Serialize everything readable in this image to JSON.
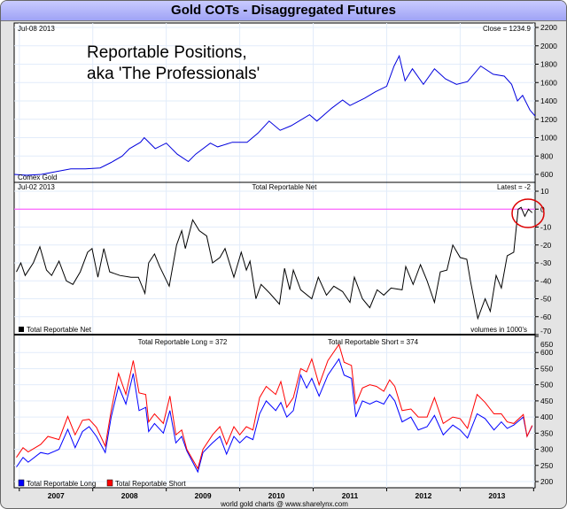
{
  "title": "Gold COTs - Disaggregated Futures",
  "footer": "world gold charts @ www.sharelynx.com",
  "annotation": {
    "line1": "Reportable Positions,",
    "line2": "aka 'The Professionals'"
  },
  "chart_data": [
    {
      "type": "line",
      "panel": "price",
      "date_label": "Jul-08 2013",
      "latest_label": "Close = 1234.9",
      "legend": "Comex Gold",
      "ylim": [
        500,
        2200
      ],
      "yticks": [
        600,
        800,
        1000,
        1200,
        1400,
        1600,
        1800,
        2000,
        2200
      ],
      "color": "#0000dd",
      "x": [
        2006.43,
        2006.6,
        2006.8,
        2007.0,
        2007.2,
        2007.4,
        2007.6,
        2007.75,
        2007.9,
        2008.0,
        2008.15,
        2008.2,
        2008.35,
        2008.5,
        2008.65,
        2008.8,
        2008.9,
        2009.1,
        2009.2,
        2009.4,
        2009.6,
        2009.75,
        2009.9,
        2010.05,
        2010.2,
        2010.45,
        2010.55,
        2010.75,
        2010.9,
        2011.0,
        2011.2,
        2011.35,
        2011.5,
        2011.6,
        2011.67,
        2011.75,
        2011.85,
        2012.0,
        2012.15,
        2012.3,
        2012.45,
        2012.6,
        2012.78,
        2012.95,
        2013.1,
        2013.2,
        2013.28,
        2013.35,
        2013.45,
        2013.52
      ],
      "values": [
        600,
        590,
        600,
        630,
        660,
        660,
        670,
        730,
        800,
        880,
        950,
        1000,
        880,
        940,
        820,
        740,
        820,
        940,
        900,
        950,
        950,
        1050,
        1180,
        1080,
        1130,
        1250,
        1180,
        1320,
        1410,
        1350,
        1430,
        1500,
        1560,
        1780,
        1890,
        1620,
        1750,
        1580,
        1750,
        1640,
        1580,
        1610,
        1780,
        1690,
        1670,
        1580,
        1400,
        1460,
        1300,
        1235
      ]
    },
    {
      "type": "line",
      "panel": "net",
      "title": "Total Reportable Net",
      "date_label": "Jul-02 2013",
      "latest_label": "Latest = -2",
      "legend": "Total Reportable Net",
      "note": "volumes in 1000's",
      "ylim": [
        -70,
        10
      ],
      "yticks": [
        10,
        0,
        -10,
        -20,
        -30,
        -40,
        -50,
        -60,
        -70
      ],
      "color": "#000000",
      "zero_line_color": "#ff44ff",
      "highlight_color": "#dd0000",
      "x": [
        2006.46,
        2006.52,
        2006.58,
        2006.69,
        2006.78,
        2006.87,
        2006.94,
        2007.04,
        2007.14,
        2007.23,
        2007.33,
        2007.43,
        2007.49,
        2007.57,
        2007.65,
        2007.73,
        2007.87,
        2008.02,
        2008.12,
        2008.21,
        2008.26,
        2008.34,
        2008.41,
        2008.54,
        2008.64,
        2008.71,
        2008.76,
        2008.86,
        2008.95,
        2009.05,
        2009.13,
        2009.23,
        2009.3,
        2009.42,
        2009.52,
        2009.59,
        2009.64,
        2009.72,
        2009.79,
        2009.91,
        2010.04,
        2010.11,
        2010.18,
        2010.23,
        2010.33,
        2010.48,
        2010.57,
        2010.68,
        2010.78,
        2010.9,
        2011.0,
        2011.06,
        2011.17,
        2011.27,
        2011.37,
        2011.46,
        2011.56,
        2011.71,
        2011.76,
        2011.86,
        2011.96,
        2012.05,
        2012.15,
        2012.23,
        2012.32,
        2012.4,
        2012.5,
        2012.59,
        2012.64,
        2012.74,
        2012.84,
        2012.91,
        2012.99,
        2013.06,
        2013.14,
        2013.23,
        2013.29,
        2013.33,
        2013.38,
        2013.43,
        2013.48
      ],
      "values": [
        -35,
        -30,
        -37,
        -30,
        -21,
        -34,
        -37,
        -29,
        -40,
        -42,
        -35,
        -24,
        -22,
        -38,
        -22,
        -35,
        -37,
        -38,
        -38,
        -47,
        -30,
        -25,
        -32,
        -43,
        -20,
        -12,
        -22,
        -6,
        -12,
        -15,
        -30,
        -27,
        -22,
        -38,
        -24,
        -34,
        -29,
        -50,
        -42,
        -47,
        -53,
        -33,
        -45,
        -34,
        -45,
        -50,
        -38,
        -48,
        -43,
        -46,
        -52,
        -38,
        -50,
        -55,
        -45,
        -48,
        -44,
        -45,
        -32,
        -42,
        -31,
        -40,
        -52,
        -35,
        -34,
        -20,
        -27,
        -28,
        -40,
        -61,
        -50,
        -57,
        -37,
        -44,
        -26,
        -24,
        0,
        1,
        -4,
        0,
        -2
      ]
    },
    {
      "type": "line",
      "panel": "long-short",
      "ylim": [
        190,
        650
      ],
      "yticks": [
        200,
        250,
        300,
        350,
        400,
        450,
        500,
        550,
        600,
        650
      ],
      "series": [
        {
          "name": "Total Reportable Long",
          "label": "Total Reportable Long = 372",
          "color": "#0000ff",
          "values": [
            245,
            275,
            260,
            290,
            285,
            300,
            362,
            305,
            355,
            370,
            340,
            290,
            400,
            495,
            440,
            535,
            420,
            430,
            355,
            380,
            350,
            420,
            320,
            340,
            295,
            230,
            290,
            320,
            340,
            285,
            340,
            320,
            340,
            330,
            410,
            450,
            420,
            445,
            400,
            420,
            530,
            490,
            520,
            465,
            530,
            580,
            530,
            520,
            400,
            450,
            440,
            450,
            440,
            470,
            450,
            385,
            400,
            360,
            370,
            405,
            345,
            375,
            360,
            335,
            410,
            395,
            360,
            385,
            365,
            375,
            400,
            340,
            372
          ]
        },
        {
          "name": "Total Reportable Short",
          "label": "Total Reportable Short = 374",
          "color": "#ff0000",
          "values": [
            275,
            305,
            292,
            315,
            340,
            330,
            402,
            345,
            390,
            393,
            368,
            310,
            420,
            535,
            470,
            575,
            475,
            470,
            385,
            410,
            380,
            465,
            345,
            360,
            300,
            240,
            300,
            345,
            370,
            315,
            370,
            345,
            370,
            360,
            460,
            495,
            470,
            510,
            430,
            460,
            550,
            540,
            580,
            500,
            575,
            625,
            570,
            560,
            440,
            490,
            500,
            495,
            480,
            515,
            495,
            420,
            425,
            400,
            400,
            460,
            380,
            400,
            395,
            365,
            470,
            445,
            410,
            410,
            385,
            380,
            408,
            340,
            374
          ]
        }
      ],
      "x": [
        2006.46,
        2006.55,
        2006.62,
        2006.79,
        2006.89,
        2007.04,
        2007.16,
        2007.26,
        2007.36,
        2007.45,
        2007.55,
        2007.67,
        2007.75,
        2007.85,
        2007.95,
        2008.05,
        2008.13,
        2008.22,
        2008.26,
        2008.34,
        2008.46,
        2008.55,
        2008.63,
        2008.71,
        2008.78,
        2008.93,
        2009.0,
        2009.13,
        2009.23,
        2009.32,
        2009.42,
        2009.5,
        2009.59,
        2009.68,
        2009.77,
        2009.86,
        2009.99,
        2010.06,
        2010.14,
        2010.23,
        2010.33,
        2010.41,
        2010.48,
        2010.58,
        2010.7,
        2010.85,
        2010.92,
        2011.02,
        2011.08,
        2011.17,
        2011.27,
        2011.36,
        2011.46,
        2011.54,
        2011.61,
        2011.71,
        2011.83,
        2011.93,
        2012.05,
        2012.15,
        2012.27,
        2012.4,
        2012.5,
        2012.6,
        2012.73,
        2012.84,
        2012.96,
        2013.06,
        2013.14,
        2013.23,
        2013.36,
        2013.41,
        2013.48
      ]
    }
  ],
  "x_axis": {
    "range": [
      2006.43,
      2013.52
    ],
    "labels": [
      "2007",
      "2008",
      "2009",
      "2010",
      "2011",
      "2012",
      "2013"
    ],
    "label_years": [
      2007,
      2008,
      2009,
      2010,
      2011,
      2012,
      2013
    ]
  }
}
